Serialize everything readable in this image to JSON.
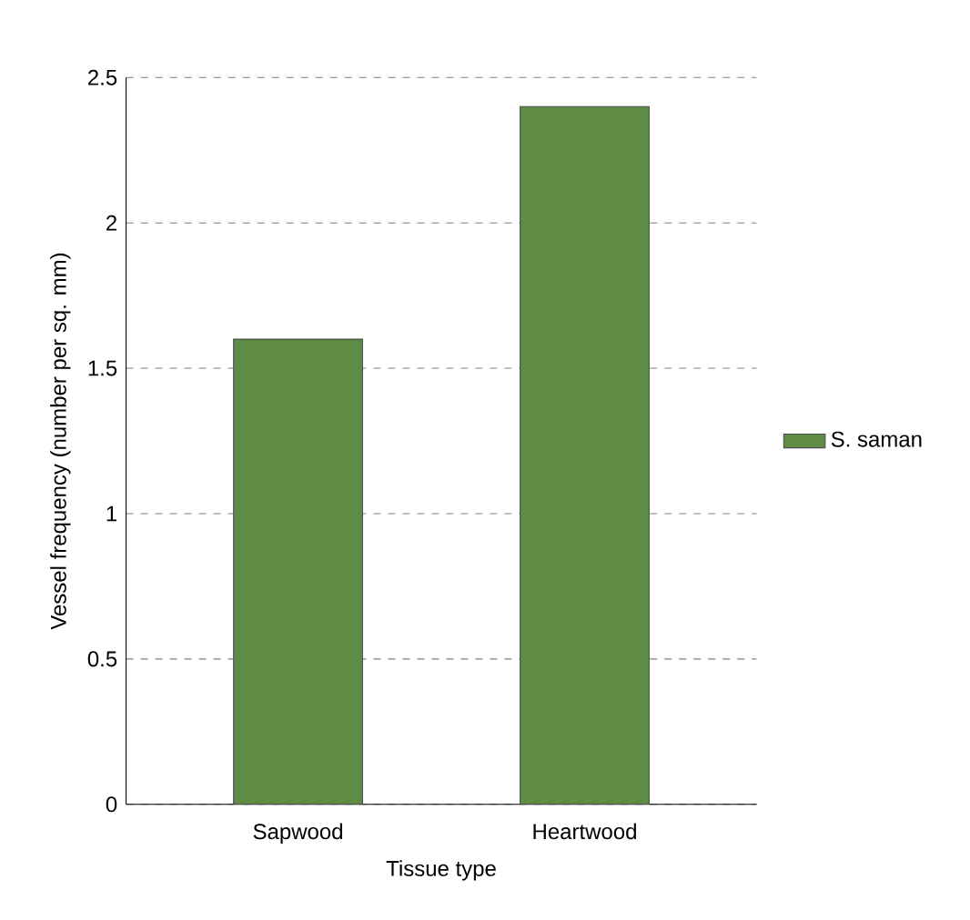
{
  "chart_data": {
    "type": "bar",
    "xlabel": "Tissue type",
    "ylabel": "Vessel frequency (number per sq. mm)",
    "categories": [
      "Sapwood",
      "Heartwood"
    ],
    "series": [
      {
        "name": "S. saman",
        "color": "#5e8c45",
        "values": [
          1.6,
          2.4
        ]
      }
    ],
    "ylim": [
      0,
      2.5
    ],
    "yticks": [
      0,
      0.5,
      1,
      1.5,
      2,
      2.5
    ],
    "grid": "y",
    "legend": "right"
  }
}
